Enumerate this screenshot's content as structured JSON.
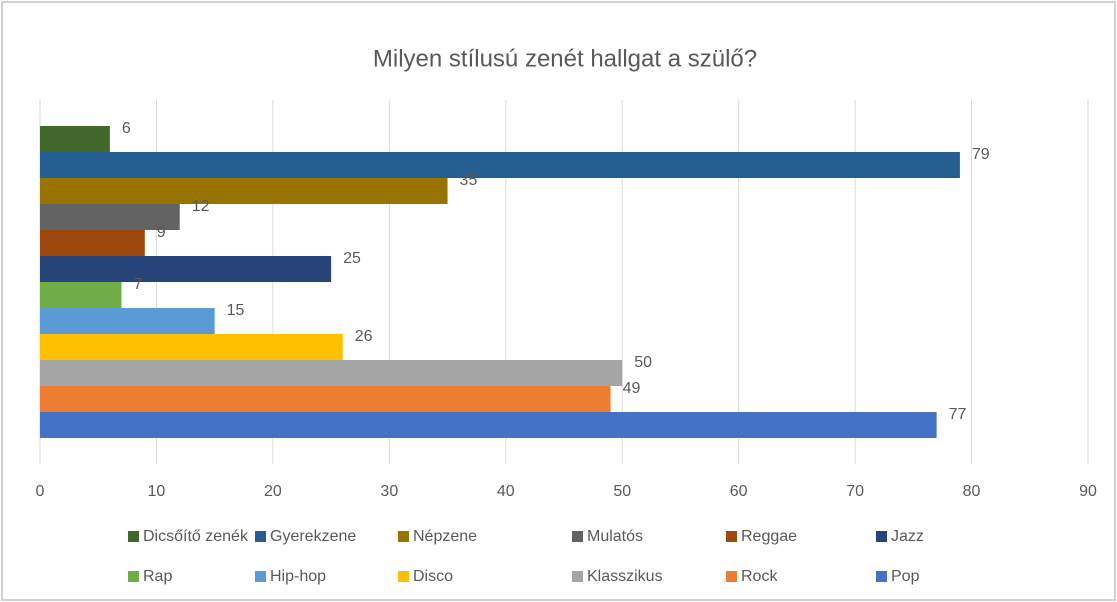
{
  "chart_data": {
    "type": "bar",
    "orientation": "horizontal",
    "title": "Milyen stílusú zenét hallgat a szülő?",
    "series": [
      {
        "name": "Dicsőítő zenék",
        "color": "#43682b",
        "values": [
          6
        ]
      },
      {
        "name": "Gyerekzene",
        "color": "#255e91",
        "values": [
          79
        ]
      },
      {
        "name": "Népzene",
        "color": "#997300",
        "values": [
          35
        ]
      },
      {
        "name": "Mulatós",
        "color": "#636363",
        "values": [
          12
        ]
      },
      {
        "name": "Reggae",
        "color": "#9e480e",
        "values": [
          9
        ]
      },
      {
        "name": "Jazz",
        "color": "#264478",
        "values": [
          25
        ]
      },
      {
        "name": "Rap",
        "color": "#70ad47",
        "values": [
          7
        ]
      },
      {
        "name": "Hip-hop",
        "color": "#5b9bd5",
        "values": [
          15
        ]
      },
      {
        "name": "Disco",
        "color": "#ffc000",
        "values": [
          26
        ]
      },
      {
        "name": "Klasszikus",
        "color": "#a5a5a5",
        "values": [
          50
        ]
      },
      {
        "name": "Rock",
        "color": "#ed7d31",
        "values": [
          49
        ]
      },
      {
        "name": "Pop",
        "color": "#4472c4",
        "values": [
          77
        ]
      }
    ],
    "xlim": [
      0,
      90
    ],
    "xticks": [
      0,
      10,
      20,
      30,
      40,
      50,
      60,
      70,
      80,
      90
    ],
    "grid": true,
    "legend": "bottom"
  }
}
